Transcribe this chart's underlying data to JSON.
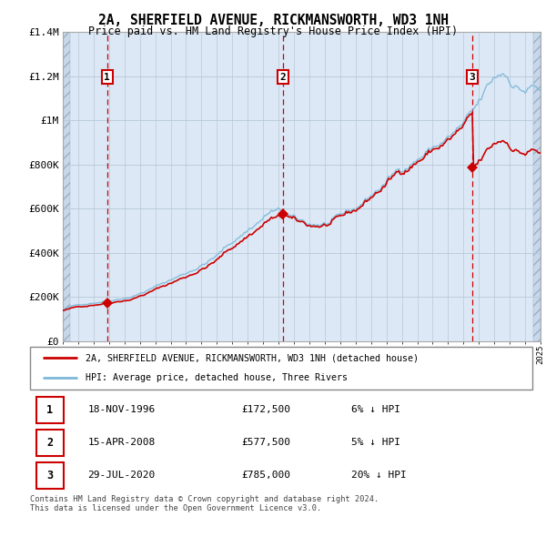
{
  "title": "2A, SHERFIELD AVENUE, RICKMANSWORTH, WD3 1NH",
  "subtitle": "Price paid vs. HM Land Registry's House Price Index (HPI)",
  "ylim": [
    0,
    1400000
  ],
  "yticks": [
    0,
    200000,
    400000,
    600000,
    800000,
    1000000,
    1200000,
    1400000
  ],
  "ytick_labels": [
    "£0",
    "£200K",
    "£400K",
    "£600K",
    "£800K",
    "£1M",
    "£1.2M",
    "£1.4M"
  ],
  "xmin": 1994,
  "xmax": 2025,
  "sale_dates": [
    1996.88,
    2008.29,
    2020.57
  ],
  "sale_prices": [
    172500,
    577500,
    785000
  ],
  "sale_labels": [
    "1",
    "2",
    "3"
  ],
  "hpi_color": "#7db8d8",
  "sale_color": "#cc0000",
  "marker_color": "#cc0000",
  "dashed_color": "#cc0000",
  "chart_bg": "#dce8f5",
  "hatch_bg": "#c8d8e8",
  "grid_color": "#b8c8d8",
  "legend_sale_label": "2A, SHERFIELD AVENUE, RICKMANSWORTH, WD3 1NH (detached house)",
  "legend_hpi_label": "HPI: Average price, detached house, Three Rivers",
  "table_rows": [
    {
      "num": "1",
      "date": "18-NOV-1996",
      "price": "£172,500",
      "hpi": "6% ↓ HPI"
    },
    {
      "num": "2",
      "date": "15-APR-2008",
      "price": "£577,500",
      "hpi": "5% ↓ HPI"
    },
    {
      "num": "3",
      "date": "29-JUL-2020",
      "price": "£785,000",
      "hpi": "20% ↓ HPI"
    }
  ],
  "footer": "Contains HM Land Registry data © Crown copyright and database right 2024.\nThis data is licensed under the Open Government Licence v3.0."
}
